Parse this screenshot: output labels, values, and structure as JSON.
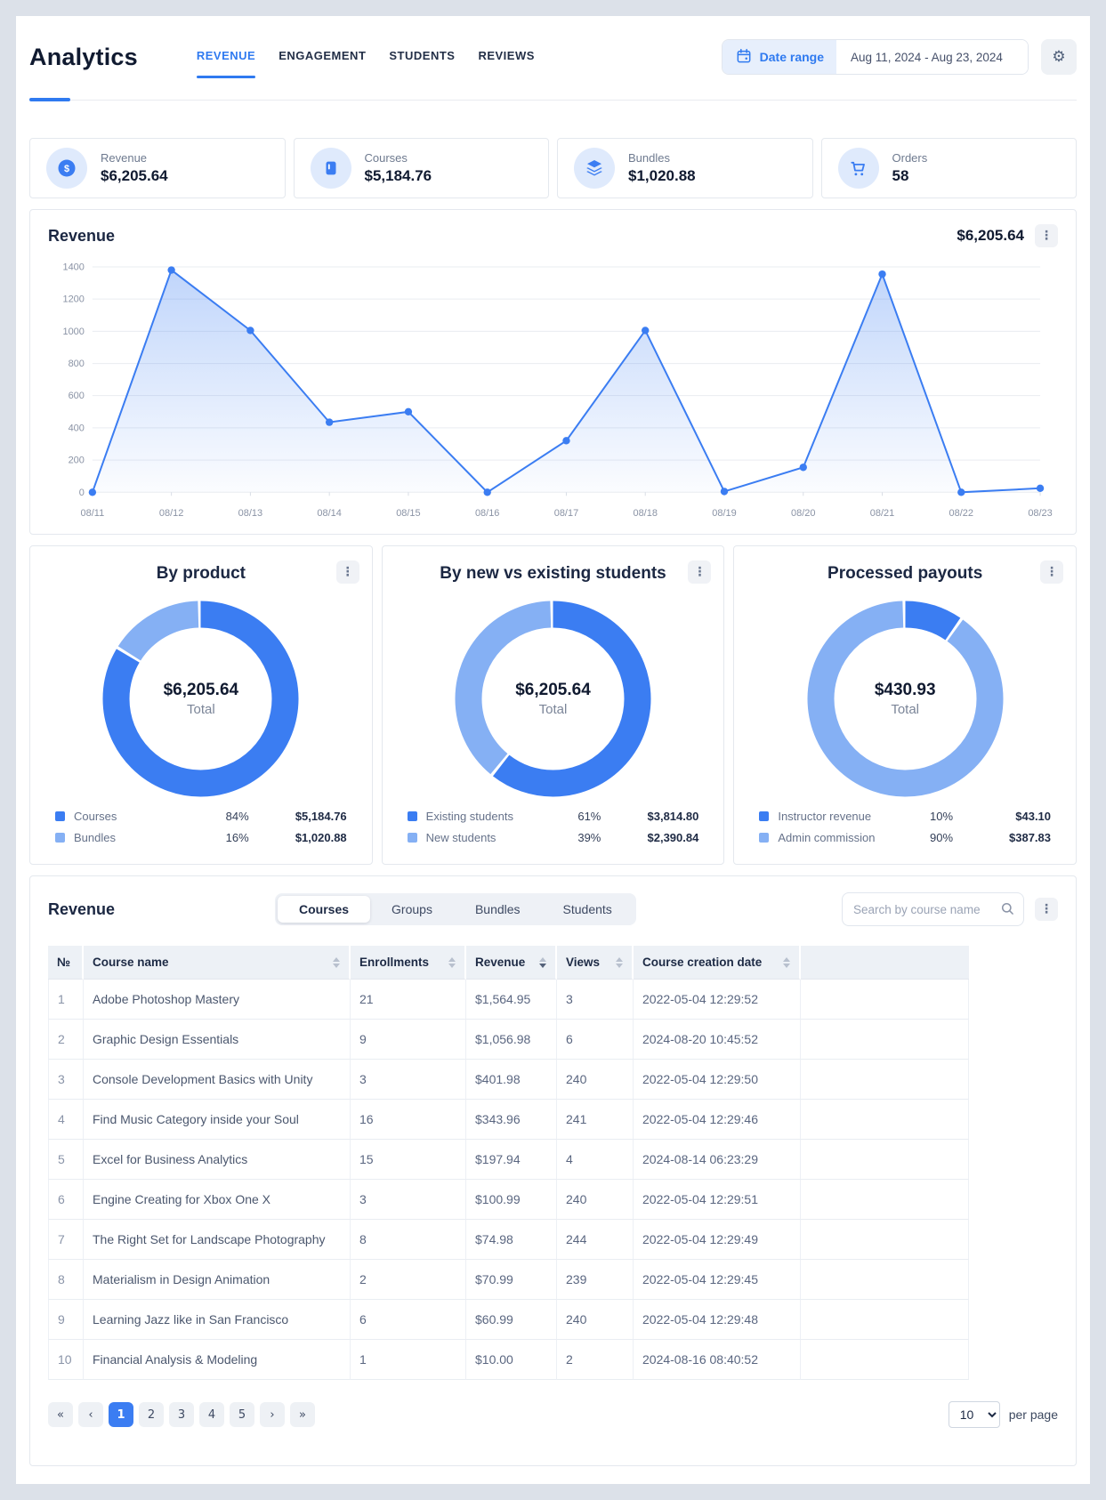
{
  "colors": {
    "accent": "#3b7df2",
    "accent_light": "#85b0f4"
  },
  "header": {
    "title": "Analytics",
    "nav_tabs": [
      {
        "label": "REVENUE",
        "active": true
      },
      {
        "label": "ENGAGEMENT",
        "active": false
      },
      {
        "label": "STUDENTS",
        "active": false
      },
      {
        "label": "REVIEWS",
        "active": false
      }
    ],
    "date_range": {
      "button_label": "Date range",
      "value": "Aug 11, 2024 - Aug 23, 2024"
    },
    "settings_icon": "gear-icon"
  },
  "summary_cards": [
    {
      "label": "Revenue",
      "value": "$6,205.64",
      "icon": "dollar-coin"
    },
    {
      "label": "Courses",
      "value": "$5,184.76",
      "icon": "book"
    },
    {
      "label": "Bundles",
      "value": "$1,020.88",
      "icon": "layers"
    },
    {
      "label": "Orders",
      "value": "58",
      "icon": "cart"
    }
  ],
  "chart_data": [
    {
      "type": "area",
      "title": "Revenue",
      "total": "$6,205.64",
      "x": [
        "08/11",
        "08/12",
        "08/13",
        "08/14",
        "08/15",
        "08/16",
        "08/17",
        "08/18",
        "08/19",
        "08/20",
        "08/21",
        "08/22",
        "08/23"
      ],
      "values": [
        0,
        1380,
        1005,
        435,
        500,
        0,
        320,
        1005,
        5,
        155,
        1355,
        0,
        25
      ],
      "ylim": [
        0,
        1400
      ],
      "ytick_step": 200,
      "grid": true,
      "line_color": "#3b7df2"
    },
    {
      "type": "pie",
      "title": "By product",
      "center_value": "$6,205.64",
      "center_label": "Total",
      "slices": [
        {
          "label": "Courses",
          "pct": 84,
          "value": "$5,184.76",
          "color": "#3b7df2"
        },
        {
          "label": "Bundles",
          "pct": 16,
          "value": "$1,020.88",
          "color": "#85b0f4"
        }
      ]
    },
    {
      "type": "pie",
      "title": "By new vs existing students",
      "center_value": "$6,205.64",
      "center_label": "Total",
      "slices": [
        {
          "label": "Existing students",
          "pct": 61,
          "value": "$3,814.80",
          "color": "#3b7df2"
        },
        {
          "label": "New students",
          "pct": 39,
          "value": "$2,390.84",
          "color": "#85b0f4"
        }
      ]
    },
    {
      "type": "pie",
      "title": "Processed payouts",
      "center_value": "$430.93",
      "center_label": "Total",
      "slices": [
        {
          "label": "Instructor revenue",
          "pct": 10,
          "value": "$43.10",
          "color": "#3b7df2"
        },
        {
          "label": "Admin commission",
          "pct": 90,
          "value": "$387.83",
          "color": "#85b0f4"
        }
      ]
    }
  ],
  "table": {
    "title": "Revenue",
    "tabs": [
      {
        "label": "Courses",
        "active": true
      },
      {
        "label": "Groups",
        "active": false
      },
      {
        "label": "Bundles",
        "active": false
      },
      {
        "label": "Students",
        "active": false
      }
    ],
    "search_placeholder": "Search by course name",
    "columns": [
      {
        "label": "№",
        "sortable": false
      },
      {
        "label": "Course name",
        "sortable": true
      },
      {
        "label": "Enrollments",
        "sortable": true
      },
      {
        "label": "Revenue",
        "sortable": true,
        "sorted": "desc"
      },
      {
        "label": "Views",
        "sortable": true
      },
      {
        "label": "Course creation date",
        "sortable": true
      },
      {
        "label": "",
        "sortable": false
      }
    ],
    "rows": [
      [
        "1",
        "Adobe Photoshop Mastery",
        "21",
        "$1,564.95",
        "3",
        "2022-05-04 12:29:52"
      ],
      [
        "2",
        "Graphic Design Essentials",
        "9",
        "$1,056.98",
        "6",
        "2024-08-20 10:45:52"
      ],
      [
        "3",
        "Console Development Basics with Unity",
        "3",
        "$401.98",
        "240",
        "2022-05-04 12:29:50"
      ],
      [
        "4",
        "Find Music Category inside your Soul",
        "16",
        "$343.96",
        "241",
        "2022-05-04 12:29:46"
      ],
      [
        "5",
        "Excel for Business Analytics",
        "15",
        "$197.94",
        "4",
        "2024-08-14 06:23:29"
      ],
      [
        "6",
        "Engine Creating for Xbox One X",
        "3",
        "$100.99",
        "240",
        "2022-05-04 12:29:51"
      ],
      [
        "7",
        "The Right Set for Landscape Photography",
        "8",
        "$74.98",
        "244",
        "2022-05-04 12:29:49"
      ],
      [
        "8",
        "Materialism in Design Animation",
        "2",
        "$70.99",
        "239",
        "2022-05-04 12:29:45"
      ],
      [
        "9",
        "Learning Jazz like in San Francisco",
        "6",
        "$60.99",
        "240",
        "2022-05-04 12:29:48"
      ],
      [
        "10",
        "Financial Analysis & Modeling",
        "1",
        "$10.00",
        "2",
        "2024-08-16 08:40:52"
      ]
    ],
    "pagination": {
      "buttons": [
        "«",
        "‹",
        "1",
        "2",
        "3",
        "4",
        "5",
        "›",
        "»"
      ],
      "active": "1",
      "per_page": "10",
      "per_page_label": "per page"
    }
  }
}
